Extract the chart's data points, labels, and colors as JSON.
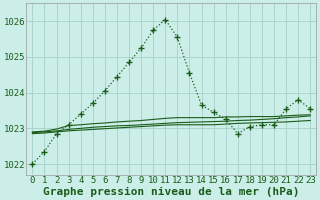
{
  "title": "Graphe pression niveau de la mer (hPa)",
  "background_color": "#cceee8",
  "grid_color": "#aad4ce",
  "line_color": "#1a5c1a",
  "ylim": [
    1021.7,
    1026.5
  ],
  "yticks": [
    1022,
    1023,
    1024,
    1025,
    1026
  ],
  "xlim": [
    -0.5,
    23.5
  ],
  "xticks": [
    0,
    1,
    2,
    3,
    4,
    5,
    6,
    7,
    8,
    9,
    10,
    11,
    12,
    13,
    14,
    15,
    16,
    17,
    18,
    19,
    20,
    21,
    22,
    23
  ],
  "series_main": [
    1022.0,
    1022.35,
    1022.85,
    1023.1,
    1023.4,
    1023.7,
    1024.05,
    1024.45,
    1024.85,
    1025.25,
    1025.75,
    1026.05,
    1025.55,
    1024.55,
    1023.65,
    1023.45,
    1023.25,
    1022.85,
    1023.05,
    1023.1,
    1023.1,
    1023.55,
    1023.8,
    1023.55
  ],
  "series_line2": [
    1022.9,
    1022.92,
    1022.98,
    1023.08,
    1023.1,
    1023.13,
    1023.15,
    1023.18,
    1023.2,
    1023.22,
    1023.25,
    1023.28,
    1023.3,
    1023.3,
    1023.3,
    1023.3,
    1023.32,
    1023.32,
    1023.33,
    1023.33,
    1023.33,
    1023.35,
    1023.37,
    1023.38
  ],
  "series_line3": [
    1022.88,
    1022.9,
    1022.93,
    1022.97,
    1023.0,
    1023.03,
    1023.05,
    1023.07,
    1023.08,
    1023.1,
    1023.12,
    1023.14,
    1023.16,
    1023.17,
    1023.18,
    1023.19,
    1023.2,
    1023.22,
    1023.23,
    1023.25,
    1023.27,
    1023.3,
    1023.32,
    1023.35
  ],
  "series_line4": [
    1022.85,
    1022.87,
    1022.9,
    1022.93,
    1022.95,
    1022.97,
    1022.99,
    1023.01,
    1023.03,
    1023.05,
    1023.07,
    1023.09,
    1023.1,
    1023.1,
    1023.1,
    1023.1,
    1023.12,
    1023.14,
    1023.15,
    1023.16,
    1023.17,
    1023.18,
    1023.2,
    1023.22
  ],
  "xlabel_fontsize": 8,
  "tick_fontsize": 6.5
}
